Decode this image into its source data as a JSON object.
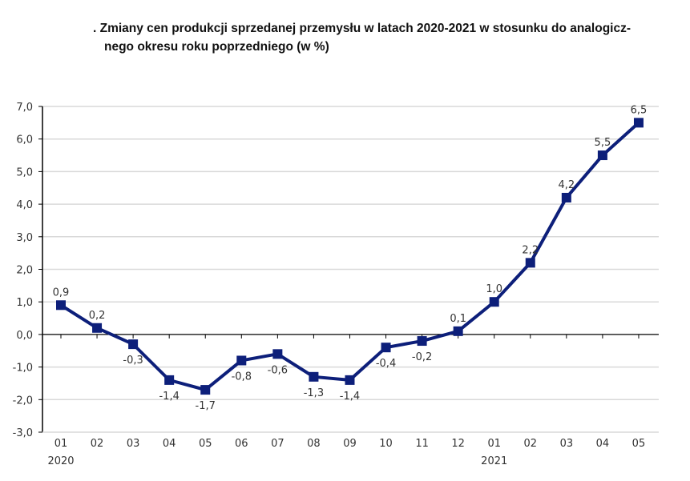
{
  "chart_data": {
    "type": "line",
    "title": ". Zmiany cen produkcji sprzedanej przemysłu w latach 2020-2021 w stosunku do analogicz-",
    "title_line2": "nego  okresu roku poprzedniego (w %)",
    "categories": [
      "01",
      "02",
      "03",
      "04",
      "05",
      "06",
      "07",
      "08",
      "09",
      "10",
      "11",
      "12",
      "01",
      "02",
      "03",
      "04",
      "05"
    ],
    "year_labels": [
      {
        "index": 0,
        "label": "2020"
      },
      {
        "index": 12,
        "label": "2021"
      }
    ],
    "values": [
      0.9,
      0.2,
      -0.3,
      -1.4,
      -1.7,
      -0.8,
      -0.6,
      -1.3,
      -1.4,
      -0.4,
      -0.2,
      0.1,
      1.0,
      2.2,
      4.2,
      5.5,
      6.5
    ],
    "data_labels": [
      "0,9",
      "0,2",
      "-0,3",
      "-1,4",
      "-1,7",
      "-0,8",
      "-0,6",
      "-1,3",
      "-1,4",
      "-0,4",
      "-0,2",
      "0,1",
      "1,0",
      "2,2",
      "4,2",
      "5,5",
      "6,5"
    ],
    "ylim": [
      -3,
      7
    ],
    "yticks": [
      "-3,0",
      "-2,0",
      "-1,0",
      "0,0",
      "1,0",
      "2,0",
      "3,0",
      "4,0",
      "5,0",
      "6,0",
      "7,0"
    ],
    "grid": true,
    "line_color": "#0d1f7a",
    "marker": "square"
  }
}
